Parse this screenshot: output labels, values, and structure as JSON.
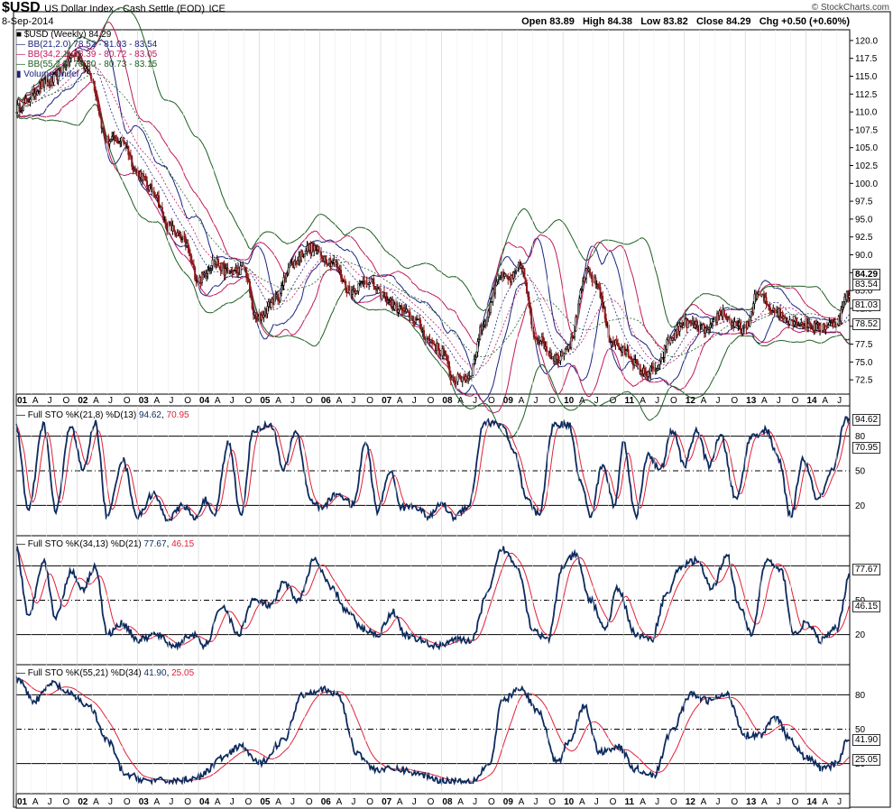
{
  "header": {
    "symbol": "$USD",
    "title": "US Dollar Index - Cash Settle (EOD)",
    "exchange": "ICE",
    "date": "8-Sep-2014",
    "brand": "© StockCharts.com",
    "open_label": "Open",
    "open": "83.89",
    "high_label": "High",
    "high": "84.38",
    "low_label": "Low",
    "low": "83.82",
    "close_label": "Close",
    "close": "84.29",
    "chg_label": "Chg",
    "chg": "+0.50 (+0.60%)"
  },
  "legend": {
    "price": "$USD (Weekly) 84.29",
    "bb1": "BB(21,2.0) 78.52 - 81.03 - 83.54",
    "bb2": "BB(34,2.1) 78.39 - 80.72 - 83.05",
    "bb3": "BB(55,2.5) 78.30 - 80.73 - 83.15",
    "volume": "Volume undef"
  },
  "colors": {
    "bb1": "#1a237e",
    "bb2": "#c2185b",
    "bb3": "#1b5e20",
    "k": "#0d2b5e",
    "d": "#e0203a",
    "up": "#000000",
    "down": "#8b1a1a"
  },
  "price_panel": {
    "ymin": 70.5,
    "ymax": 121.5,
    "ticks": [
      "72.5",
      "75.0",
      "77.5",
      "80.0",
      "82.5",
      "85.0",
      "87.5",
      "90.0",
      "92.5",
      "95.0",
      "97.5",
      "100.0",
      "102.5",
      "105.0",
      "107.5",
      "110.0",
      "112.5",
      "115.0",
      "117.5",
      "120.0"
    ],
    "badges": [
      "84.29",
      "83.54",
      "81.03",
      "78.52"
    ]
  },
  "stoch_panels": [
    {
      "legend_prefix": "Full STO %K(21,8) %D(13)",
      "k_value": "94.62",
      "d_value": "70.95",
      "k_anchors": [
        [
          2001.0,
          88
        ],
        [
          2001.2,
          15
        ],
        [
          2001.45,
          90
        ],
        [
          2001.65,
          15
        ],
        [
          2001.9,
          90
        ],
        [
          2002.1,
          50
        ],
        [
          2002.3,
          92
        ],
        [
          2002.5,
          10
        ],
        [
          2002.75,
          60
        ],
        [
          2003.0,
          10
        ],
        [
          2003.25,
          30
        ],
        [
          2003.5,
          8
        ],
        [
          2003.75,
          20
        ],
        [
          2003.95,
          8
        ],
        [
          2004.1,
          25
        ],
        [
          2004.25,
          10
        ],
        [
          2004.5,
          75
        ],
        [
          2004.7,
          10
        ],
        [
          2004.9,
          85
        ],
        [
          2005.2,
          90
        ],
        [
          2005.4,
          50
        ],
        [
          2005.6,
          85
        ],
        [
          2005.85,
          25
        ],
        [
          2006.0,
          18
        ],
        [
          2006.3,
          30
        ],
        [
          2006.55,
          20
        ],
        [
          2006.75,
          75
        ],
        [
          2006.95,
          15
        ],
        [
          2007.15,
          50
        ],
        [
          2007.35,
          18
        ],
        [
          2007.55,
          20
        ],
        [
          2007.8,
          10
        ],
        [
          2008.0,
          22
        ],
        [
          2008.2,
          10
        ],
        [
          2008.45,
          20
        ],
        [
          2008.7,
          92
        ],
        [
          2009.0,
          90
        ],
        [
          2009.2,
          65
        ],
        [
          2009.4,
          25
        ],
        [
          2009.6,
          12
        ],
        [
          2009.85,
          90
        ],
        [
          2010.1,
          90
        ],
        [
          2010.3,
          40
        ],
        [
          2010.45,
          10
        ],
        [
          2010.65,
          55
        ],
        [
          2010.85,
          20
        ],
        [
          2011.0,
          75
        ],
        [
          2011.2,
          10
        ],
        [
          2011.4,
          65
        ],
        [
          2011.6,
          50
        ],
        [
          2011.8,
          85
        ],
        [
          2012.0,
          55
        ],
        [
          2012.2,
          85
        ],
        [
          2012.4,
          55
        ],
        [
          2012.6,
          80
        ],
        [
          2012.85,
          25
        ],
        [
          2013.1,
          80
        ],
        [
          2013.35,
          85
        ],
        [
          2013.55,
          60
        ],
        [
          2013.75,
          10
        ],
        [
          2013.95,
          60
        ],
        [
          2014.2,
          25
        ],
        [
          2014.45,
          50
        ],
        [
          2014.65,
          95
        ]
      ],
      "ticks": [
        "80",
        "50",
        "20"
      ]
    },
    {
      "legend_prefix": "Full STO %K(34,13) %D(21)",
      "k_value": "77.67",
      "d_value": "46.15",
      "k_anchors": [
        [
          2001.0,
          95
        ],
        [
          2001.2,
          35
        ],
        [
          2001.45,
          85
        ],
        [
          2001.65,
          35
        ],
        [
          2001.9,
          75
        ],
        [
          2002.1,
          60
        ],
        [
          2002.3,
          80
        ],
        [
          2002.5,
          20
        ],
        [
          2002.75,
          30
        ],
        [
          2003.0,
          15
        ],
        [
          2003.3,
          20
        ],
        [
          2003.6,
          10
        ],
        [
          2003.9,
          20
        ],
        [
          2004.1,
          10
        ],
        [
          2004.4,
          45
        ],
        [
          2004.65,
          20
        ],
        [
          2004.9,
          50
        ],
        [
          2005.2,
          45
        ],
        [
          2005.4,
          65
        ],
        [
          2005.65,
          50
        ],
        [
          2005.9,
          85
        ],
        [
          2006.2,
          60
        ],
        [
          2006.45,
          40
        ],
        [
          2006.7,
          25
        ],
        [
          2006.95,
          20
        ],
        [
          2007.2,
          40
        ],
        [
          2007.4,
          20
        ],
        [
          2007.65,
          15
        ],
        [
          2007.9,
          10
        ],
        [
          2008.2,
          15
        ],
        [
          2008.5,
          15
        ],
        [
          2008.75,
          55
        ],
        [
          2009.0,
          95
        ],
        [
          2009.25,
          80
        ],
        [
          2009.5,
          25
        ],
        [
          2009.75,
          15
        ],
        [
          2010.0,
          80
        ],
        [
          2010.2,
          90
        ],
        [
          2010.45,
          50
        ],
        [
          2010.7,
          25
        ],
        [
          2010.9,
          60
        ],
        [
          2011.2,
          20
        ],
        [
          2011.45,
          15
        ],
        [
          2011.7,
          55
        ],
        [
          2011.95,
          80
        ],
        [
          2012.2,
          85
        ],
        [
          2012.45,
          60
        ],
        [
          2012.7,
          90
        ],
        [
          2012.9,
          45
        ],
        [
          2013.1,
          20
        ],
        [
          2013.35,
          85
        ],
        [
          2013.6,
          75
        ],
        [
          2013.8,
          20
        ],
        [
          2014.0,
          30
        ],
        [
          2014.25,
          15
        ],
        [
          2014.5,
          25
        ],
        [
          2014.75,
          78
        ]
      ],
      "ticks": [
        "50",
        "20"
      ]
    },
    {
      "legend_prefix": "Full STO %K(55,21) %D(34)",
      "k_value": "41.90",
      "d_value": "25.05",
      "k_anchors": [
        [
          2001.0,
          95
        ],
        [
          2001.3,
          75
        ],
        [
          2001.6,
          90
        ],
        [
          2001.9,
          80
        ],
        [
          2002.2,
          70
        ],
        [
          2002.5,
          40
        ],
        [
          2002.8,
          10
        ],
        [
          2003.2,
          5
        ],
        [
          2003.6,
          5
        ],
        [
          2004.0,
          8
        ],
        [
          2004.4,
          25
        ],
        [
          2004.7,
          35
        ],
        [
          2005.0,
          20
        ],
        [
          2005.4,
          40
        ],
        [
          2005.7,
          80
        ],
        [
          2006.0,
          85
        ],
        [
          2006.3,
          80
        ],
        [
          2006.6,
          30
        ],
        [
          2006.9,
          15
        ],
        [
          2007.3,
          15
        ],
        [
          2007.7,
          10
        ],
        [
          2008.0,
          5
        ],
        [
          2008.5,
          5
        ],
        [
          2008.8,
          20
        ],
        [
          2009.0,
          75
        ],
        [
          2009.3,
          85
        ],
        [
          2009.6,
          65
        ],
        [
          2009.9,
          20
        ],
        [
          2010.1,
          40
        ],
        [
          2010.35,
          70
        ],
        [
          2010.6,
          30
        ],
        [
          2010.9,
          35
        ],
        [
          2011.2,
          15
        ],
        [
          2011.5,
          10
        ],
        [
          2011.8,
          50
        ],
        [
          2012.1,
          80
        ],
        [
          2012.4,
          75
        ],
        [
          2012.7,
          80
        ],
        [
          2013.0,
          45
        ],
        [
          2013.25,
          45
        ],
        [
          2013.5,
          60
        ],
        [
          2013.75,
          40
        ],
        [
          2014.0,
          25
        ],
        [
          2014.3,
          15
        ],
        [
          2014.5,
          20
        ],
        [
          2014.7,
          42
        ]
      ],
      "ticks": [
        "80",
        "50",
        "20"
      ]
    }
  ],
  "time_axis": {
    "labels": [
      {
        "t": 2001.0,
        "label": "01",
        "bold": true
      },
      {
        "t": 2001.25,
        "label": "A"
      },
      {
        "t": 2001.5,
        "label": "J"
      },
      {
        "t": 2001.75,
        "label": "O"
      },
      {
        "t": 2002.0,
        "label": "02",
        "bold": true
      },
      {
        "t": 2002.25,
        "label": "A"
      },
      {
        "t": 2002.5,
        "label": "J"
      },
      {
        "t": 2002.75,
        "label": "O"
      },
      {
        "t": 2003.0,
        "label": "03",
        "bold": true
      },
      {
        "t": 2003.25,
        "label": "A"
      },
      {
        "t": 2003.5,
        "label": "J"
      },
      {
        "t": 2003.75,
        "label": "O"
      },
      {
        "t": 2004.0,
        "label": "04",
        "bold": true
      },
      {
        "t": 2004.25,
        "label": "A"
      },
      {
        "t": 2004.5,
        "label": "J"
      },
      {
        "t": 2004.75,
        "label": "O"
      },
      {
        "t": 2005.0,
        "label": "05",
        "bold": true
      },
      {
        "t": 2005.25,
        "label": "A"
      },
      {
        "t": 2005.5,
        "label": "J"
      },
      {
        "t": 2005.75,
        "label": "O"
      },
      {
        "t": 2006.0,
        "label": "06",
        "bold": true
      },
      {
        "t": 2006.25,
        "label": "A"
      },
      {
        "t": 2006.5,
        "label": "J"
      },
      {
        "t": 2006.75,
        "label": "O"
      },
      {
        "t": 2007.0,
        "label": "07",
        "bold": true
      },
      {
        "t": 2007.25,
        "label": "A"
      },
      {
        "t": 2007.5,
        "label": "J"
      },
      {
        "t": 2007.75,
        "label": "O"
      },
      {
        "t": 2008.0,
        "label": "08",
        "bold": true
      },
      {
        "t": 2008.25,
        "label": "A"
      },
      {
        "t": 2008.5,
        "label": "J"
      },
      {
        "t": 2008.75,
        "label": "O"
      },
      {
        "t": 2009.0,
        "label": "09",
        "bold": true
      },
      {
        "t": 2009.25,
        "label": "A"
      },
      {
        "t": 2009.5,
        "label": "J"
      },
      {
        "t": 2009.75,
        "label": "O"
      },
      {
        "t": 2010.0,
        "label": "10",
        "bold": true
      },
      {
        "t": 2010.25,
        "label": "A"
      },
      {
        "t": 2010.5,
        "label": "J"
      },
      {
        "t": 2010.75,
        "label": "O"
      },
      {
        "t": 2011.0,
        "label": "11",
        "bold": true
      },
      {
        "t": 2011.25,
        "label": "A"
      },
      {
        "t": 2011.5,
        "label": "J"
      },
      {
        "t": 2011.75,
        "label": "O"
      },
      {
        "t": 2012.0,
        "label": "12",
        "bold": true
      },
      {
        "t": 2012.25,
        "label": "A"
      },
      {
        "t": 2012.5,
        "label": "J"
      },
      {
        "t": 2012.75,
        "label": "O"
      },
      {
        "t": 2013.0,
        "label": "13",
        "bold": true
      },
      {
        "t": 2013.25,
        "label": "A"
      },
      {
        "t": 2013.5,
        "label": "J"
      },
      {
        "t": 2013.75,
        "label": "O"
      },
      {
        "t": 2014.0,
        "label": "14",
        "bold": true
      },
      {
        "t": 2014.25,
        "label": "A"
      },
      {
        "t": 2014.5,
        "label": "J"
      }
    ]
  },
  "chart_data": {
    "type": "line",
    "title": "$USD US Dollar Index - Cash Settle (EOD) ICE",
    "interval": "weekly",
    "series": [
      {
        "name": "$USD (Weekly)",
        "x": [
          2001.0,
          2001.5,
          2002.0,
          2002.2,
          2002.5,
          2002.75,
          2003.0,
          2003.25,
          2003.5,
          2003.75,
          2004.0,
          2004.25,
          2004.5,
          2004.75,
          2004.95,
          2005.3,
          2005.5,
          2005.85,
          2006.2,
          2006.5,
          2006.8,
          2007.0,
          2007.3,
          2007.55,
          2007.8,
          2008.0,
          2008.2,
          2008.45,
          2008.7,
          2008.95,
          2009.15,
          2009.3,
          2009.55,
          2009.9,
          2010.1,
          2010.4,
          2010.55,
          2010.8,
          2011.0,
          2011.35,
          2011.55,
          2011.75,
          2012.0,
          2012.4,
          2012.6,
          2012.85,
          2013.0,
          2013.2,
          2013.45,
          2013.7,
          2013.95,
          2014.2,
          2014.5,
          2014.68
        ],
        "values": [
          110.5,
          114.0,
          118.0,
          115.5,
          106.0,
          106.0,
          101.5,
          99.0,
          94.0,
          92.0,
          86.5,
          89.0,
          87.5,
          88.0,
          81.0,
          84.0,
          88.5,
          91.0,
          89.0,
          85.0,
          86.5,
          84.5,
          82.5,
          81.0,
          78.0,
          76.5,
          72.5,
          73.0,
          80.5,
          87.0,
          86.5,
          88.5,
          78.5,
          75.5,
          77.5,
          87.5,
          86.0,
          78.0,
          76.5,
          73.5,
          74.0,
          78.0,
          80.5,
          79.5,
          82.0,
          80.0,
          79.5,
          84.5,
          82.5,
          81.0,
          80.5,
          79.8,
          80.5,
          84.29
        ]
      }
    ],
    "y_range": [
      72.5,
      120.0
    ],
    "last_close": "84.29"
  }
}
